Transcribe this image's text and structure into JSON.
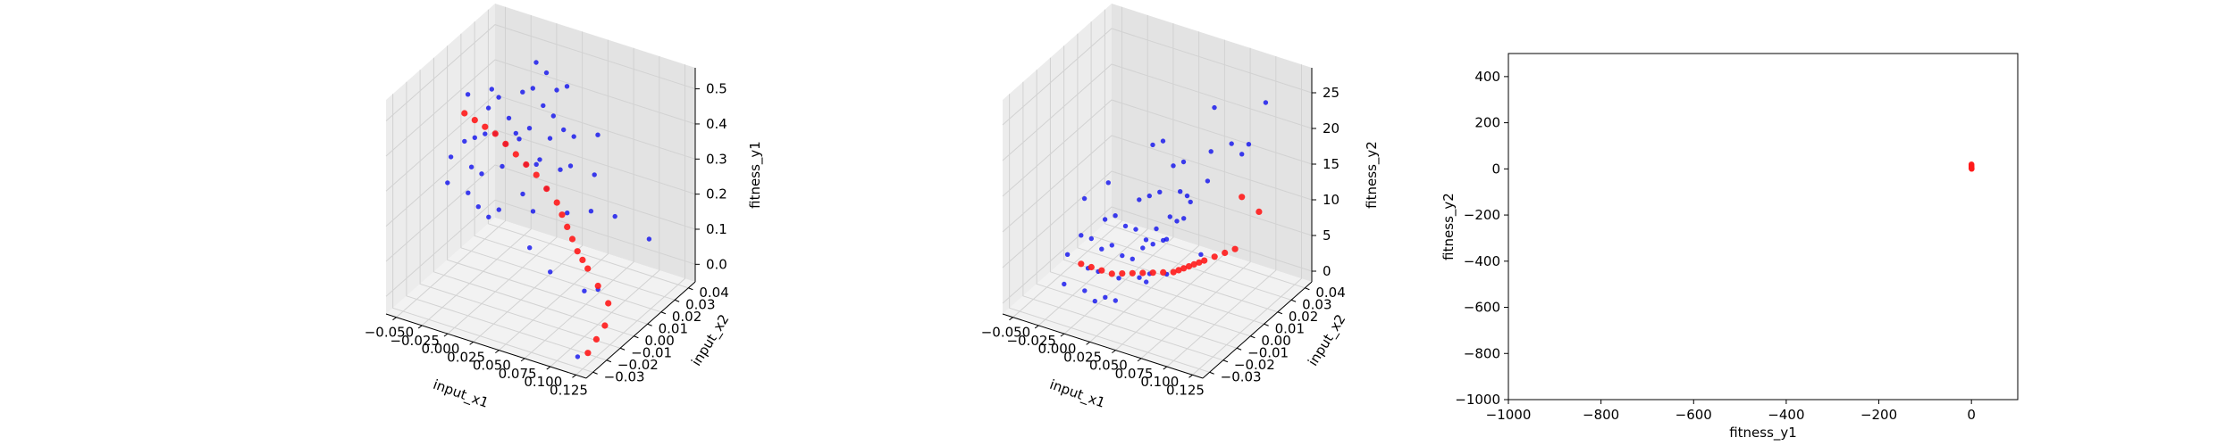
{
  "colors": {
    "pane_left": "#ececec",
    "pane_right": "#e3e3e3",
    "pane_floor": "#f2f2f2",
    "grid": "#d2d2d2",
    "population": "#0000ee",
    "pareto": "#ff1a1a"
  },
  "chart_data": [
    {
      "type": "scatter3d",
      "xlabel": "input_x1",
      "ylabel": "input_x2",
      "zlabel": "fitness_y1",
      "xlim": [
        -0.06,
        0.135
      ],
      "ylim": [
        -0.035,
        0.045
      ],
      "zlim": [
        -0.05,
        0.56
      ],
      "xticks": [
        -0.05,
        -0.025,
        0.0,
        0.025,
        0.05,
        0.075,
        0.1,
        0.125
      ],
      "xtick_labels": [
        "−0.050",
        "−0.025",
        "0.000",
        "0.025",
        "0.050",
        "0.075",
        "0.100",
        "0.125"
      ],
      "yticks": [
        -0.03,
        -0.02,
        -0.01,
        0.0,
        0.01,
        0.02,
        0.03,
        0.04
      ],
      "ytick_labels": [
        "−0.03",
        "−0.02",
        "−0.01",
        "0.00",
        "0.01",
        "0.02",
        "0.03",
        "0.04"
      ],
      "zticks": [
        0,
        0.1,
        0.2,
        0.3,
        0.4,
        0.5
      ],
      "ztick_labels": [
        "0.0",
        "0.1",
        "0.2",
        "0.3",
        "0.4",
        "0.5"
      ],
      "grid": true,
      "series": [
        {
          "color": "#0000ee",
          "points": [
            [
              -0.02,
              0.01,
              0.42
            ],
            [
              0.0,
              0.02,
              0.45
            ],
            [
              0.01,
              0.0,
              0.38
            ],
            [
              0.02,
              0.01,
              0.4
            ],
            [
              -0.01,
              -0.01,
              0.33
            ],
            [
              0.03,
              0.02,
              0.41
            ],
            [
              0.0,
              -0.02,
              0.3
            ],
            [
              0.02,
              -0.01,
              0.36
            ],
            [
              0.04,
              0.01,
              0.39
            ],
            [
              0.01,
              0.02,
              0.47
            ],
            [
              -0.03,
              0.0,
              0.35
            ],
            [
              0.03,
              -0.02,
              0.28
            ],
            [
              0.05,
              0.02,
              0.37
            ],
            [
              0.02,
              0.03,
              0.44
            ],
            [
              -0.01,
              0.01,
              0.46
            ],
            [
              0.04,
              -0.01,
              0.3
            ],
            [
              0.0,
              0.0,
              0.4
            ],
            [
              0.01,
              -0.02,
              0.27
            ],
            [
              0.03,
              0.0,
              0.34
            ],
            [
              -0.02,
              -0.02,
              0.31
            ],
            [
              0.06,
              0.01,
              0.33
            ],
            [
              0.05,
              -0.01,
              0.26
            ],
            [
              0.02,
              0.0,
              0.42
            ],
            [
              -0.03,
              0.02,
              0.43
            ],
            [
              0.01,
              0.01,
              0.36
            ],
            [
              0.04,
              0.02,
              0.38
            ],
            [
              0.0,
              0.03,
              0.5
            ],
            [
              -0.04,
              0.01,
              0.44
            ],
            [
              0.03,
              0.01,
              0.32
            ],
            [
              0.07,
              0.0,
              0.24
            ],
            [
              0.06,
              -0.02,
              0.2
            ],
            [
              0.02,
              -0.02,
              0.25
            ],
            [
              -0.01,
              0.0,
              0.39
            ],
            [
              0.05,
              0.0,
              0.29
            ],
            [
              0.08,
              0.01,
              0.22
            ],
            [
              0.09,
              0.02,
              0.18
            ],
            [
              0.1,
              -0.01,
              0.08
            ],
            [
              0.11,
              0.03,
              0.1
            ],
            [
              0.07,
              0.02,
              0.28
            ],
            [
              0.03,
              0.03,
              0.46
            ],
            [
              -0.02,
              0.0,
              0.37
            ],
            [
              0.0,
              0.01,
              0.41
            ],
            [
              0.04,
              0.0,
              0.35
            ],
            [
              0.01,
              0.03,
              0.48
            ],
            [
              0.06,
              0.03,
              0.35
            ],
            [
              0.08,
              -0.02,
              0.15
            ],
            [
              0.02,
              0.02,
              0.43
            ],
            [
              -0.03,
              -0.01,
              0.34
            ],
            [
              0.05,
              0.01,
              0.31
            ],
            [
              0.0,
              -0.01,
              0.32
            ],
            [
              0.12,
              -0.03,
              -0.02
            ],
            [
              0.1,
              0.0,
              0.05
            ]
          ]
        },
        {
          "color": "#ff1a1a",
          "points": [
            [
              -0.03,
              0.0,
              0.43
            ],
            [
              -0.02,
              0.0,
              0.42
            ],
            [
              -0.01,
              0.0,
              0.41
            ],
            [
              0.0,
              0.0,
              0.4
            ],
            [
              0.01,
              0.0,
              0.38
            ],
            [
              0.02,
              0.0,
              0.36
            ],
            [
              0.03,
              0.0,
              0.34
            ],
            [
              0.04,
              0.0,
              0.32
            ],
            [
              0.05,
              0.0,
              0.29
            ],
            [
              0.06,
              0.0,
              0.26
            ],
            [
              0.065,
              0.0,
              0.23
            ],
            [
              0.07,
              0.0,
              0.2
            ],
            [
              0.075,
              0.0,
              0.17
            ],
            [
              0.08,
              0.0,
              0.14
            ],
            [
              0.085,
              0.0,
              0.12
            ],
            [
              0.09,
              0.0,
              0.1
            ],
            [
              0.1,
              0.0,
              0.06
            ],
            [
              0.11,
              0.0,
              0.02
            ],
            [
              0.12,
              -0.01,
              0.0
            ],
            [
              0.125,
              -0.02,
              0.0
            ],
            [
              0.13,
              -0.03,
              0.0
            ]
          ]
        }
      ]
    },
    {
      "type": "scatter3d",
      "xlabel": "input_x1",
      "ylabel": "input_x2",
      "zlabel": "fitness_y2",
      "xlim": [
        -0.06,
        0.135
      ],
      "ylim": [
        -0.035,
        0.045
      ],
      "zlim": [
        -1.5,
        28.5
      ],
      "xticks": [
        -0.05,
        -0.025,
        0.0,
        0.025,
        0.05,
        0.075,
        0.1,
        0.125
      ],
      "xtick_labels": [
        "−0.050",
        "−0.025",
        "0.000",
        "0.025",
        "0.050",
        "0.075",
        "0.100",
        "0.125"
      ],
      "yticks": [
        -0.03,
        -0.02,
        -0.01,
        0.0,
        0.01,
        0.02,
        0.03,
        0.04
      ],
      "ytick_labels": [
        "−0.03",
        "−0.02",
        "−0.01",
        "0.00",
        "0.01",
        "0.02",
        "0.03",
        "0.04"
      ],
      "zticks": [
        0,
        5,
        10,
        15,
        20,
        25
      ],
      "ztick_labels": [
        "0",
        "5",
        "10",
        "15",
        "20",
        "25"
      ],
      "grid": true,
      "series": [
        {
          "color": "#0000ee",
          "points": [
            [
              -0.02,
              0.01,
              6
            ],
            [
              0.0,
              0.02,
              8
            ],
            [
              0.01,
              0.0,
              4
            ],
            [
              0.02,
              0.01,
              5
            ],
            [
              -0.01,
              -0.01,
              3
            ],
            [
              0.03,
              0.02,
              7
            ],
            [
              0.0,
              -0.02,
              2
            ],
            [
              0.02,
              -0.01,
              3
            ],
            [
              0.04,
              0.01,
              6
            ],
            [
              0.01,
              0.02,
              9
            ],
            [
              -0.03,
              0.0,
              5
            ],
            [
              0.03,
              -0.02,
              2
            ],
            [
              0.05,
              0.02,
              10
            ],
            [
              0.02,
              0.03,
              12
            ],
            [
              -0.01,
              0.01,
              7
            ],
            [
              0.04,
              -0.01,
              4
            ],
            [
              0.0,
              0.0,
              5
            ],
            [
              0.01,
              -0.02,
              1
            ],
            [
              0.03,
              0.0,
              6
            ],
            [
              -0.02,
              -0.02,
              2
            ],
            [
              0.06,
              0.01,
              13
            ],
            [
              0.05,
              -0.01,
              5
            ],
            [
              0.02,
              0.0,
              4
            ],
            [
              -0.03,
              0.02,
              9
            ],
            [
              0.01,
              0.01,
              6
            ],
            [
              0.04,
              0.02,
              11
            ],
            [
              0.0,
              0.03,
              14
            ],
            [
              -0.04,
              0.01,
              8
            ],
            [
              0.03,
              0.01,
              7
            ],
            [
              0.07,
              0.0,
              12
            ],
            [
              0.06,
              -0.02,
              6
            ],
            [
              0.02,
              -0.02,
              2
            ],
            [
              -0.01,
              0.0,
              4
            ],
            [
              0.05,
              0.0,
              8
            ],
            [
              0.08,
              0.01,
              16
            ],
            [
              0.09,
              0.02,
              20
            ],
            [
              0.1,
              -0.01,
              10
            ],
            [
              0.11,
              0.03,
              25
            ],
            [
              0.07,
              0.02,
              18
            ],
            [
              0.03,
              0.03,
              13
            ],
            [
              -0.02,
              0.0,
              5
            ],
            [
              0.0,
              0.01,
              6
            ],
            [
              0.04,
              0.0,
              7
            ],
            [
              0.01,
              0.03,
              15
            ],
            [
              0.06,
              0.03,
              22
            ],
            [
              0.08,
              -0.02,
              8
            ],
            [
              0.02,
              0.02,
              10
            ],
            [
              -0.03,
              -0.01,
              4
            ],
            [
              0.05,
              0.01,
              9
            ],
            [
              0.0,
              -0.01,
              3
            ],
            [
              0.1,
              0.02,
              19
            ],
            [
              0.12,
              0.01,
              23
            ]
          ]
        },
        {
          "color": "#ff1a1a",
          "points": [
            [
              -0.03,
              0.0,
              1
            ],
            [
              -0.02,
              0.0,
              1
            ],
            [
              -0.01,
              0.0,
              1
            ],
            [
              0.0,
              0.0,
              1
            ],
            [
              0.01,
              0.0,
              1.5
            ],
            [
              0.02,
              0.0,
              2
            ],
            [
              0.03,
              0.0,
              2.5
            ],
            [
              0.04,
              0.0,
              3
            ],
            [
              0.05,
              0.0,
              3.5
            ],
            [
              0.06,
              0.0,
              4
            ],
            [
              0.065,
              0.0,
              4.5
            ],
            [
              0.07,
              0.0,
              5
            ],
            [
              0.075,
              0.0,
              5.5
            ],
            [
              0.08,
              0.0,
              6
            ],
            [
              0.085,
              0.0,
              6.5
            ],
            [
              0.09,
              0.0,
              7
            ],
            [
              0.1,
              0.0,
              8
            ],
            [
              0.11,
              0.0,
              9
            ],
            [
              0.12,
              0.0,
              10
            ],
            [
              0.13,
              0.01,
              14
            ],
            [
              0.1,
              0.02,
              13
            ]
          ]
        }
      ]
    },
    {
      "type": "scatter",
      "xlabel": "fitness_y1",
      "ylabel": "fitness_y2",
      "xlim": [
        -1000,
        100
      ],
      "ylim": [
        -1000,
        500
      ],
      "xticks": [
        -1000,
        -800,
        -600,
        -400,
        -200,
        0
      ],
      "xtick_labels": [
        "−1000",
        "−800",
        "−600",
        "−400",
        "−200",
        "0"
      ],
      "yticks": [
        -1000,
        -800,
        -600,
        -400,
        -200,
        0,
        200,
        400
      ],
      "ytick_labels": [
        "−1000",
        "−800",
        "−600",
        "−400",
        "−200",
        "0",
        "200",
        "400"
      ],
      "grid": false,
      "series": [
        {
          "color": "#ff1a1a",
          "points": [
            [
              0.4,
              1
            ],
            [
              0.35,
              2
            ],
            [
              0.3,
              3
            ],
            [
              0.25,
              5
            ],
            [
              0.2,
              7
            ],
            [
              0.15,
              9
            ],
            [
              0.1,
              12
            ],
            [
              0.05,
              15
            ],
            [
              0.02,
              18
            ],
            [
              0.0,
              20
            ],
            [
              0.45,
              0
            ],
            [
              0.38,
              1.5
            ]
          ]
        }
      ]
    }
  ]
}
